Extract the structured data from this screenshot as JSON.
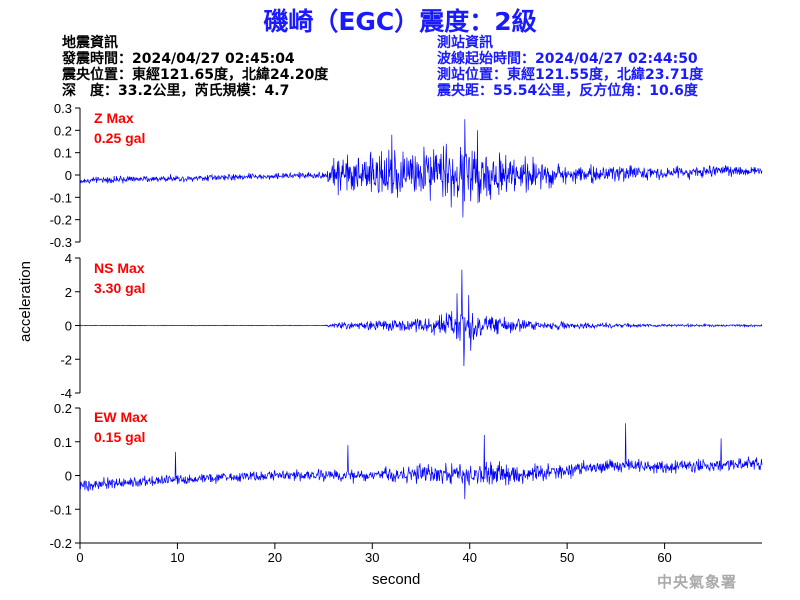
{
  "header": {
    "title": "磯崎（EGC）震度：2級",
    "quake_heading": "地震資訊",
    "quake_time": "發震時間：2024/04/27 02:45:04",
    "quake_location": "震央位置：東經121.65度，北緯24.20度",
    "quake_depth": "深　度：33.2公里，芮氏規模：4.7",
    "station_heading": "測站資訊",
    "wave_start": "波線起始時間：2024/04/27 02:44:50",
    "station_location": "測站位置：東經121.55度，北緯23.71度",
    "station_distance": "震央距：55.54公里，反方位角：10.6度"
  },
  "credit": "中央氣象署",
  "colors": {
    "trace": "#0000ff",
    "max_label": "#ff0000",
    "title": "#1a1aff"
  },
  "chart_data": {
    "type": "line",
    "xlabel": "second",
    "ylabel": "acceleration",
    "xlim": [
      0,
      70
    ],
    "xticks": [
      0,
      10,
      20,
      30,
      40,
      50,
      60
    ],
    "panels": [
      {
        "name": "Z",
        "max_label": "Z Max",
        "max_value": "0.25 gal",
        "ylim": [
          -0.3,
          0.3
        ],
        "yticks": [
          -0.3,
          -0.2,
          -0.1,
          0,
          0.1,
          0.2,
          0.3
        ],
        "ytick_labels": [
          "-0.3",
          "-0.2",
          "-0.1",
          "0",
          "0.1",
          "0.2",
          "0.3"
        ],
        "noise_level": 0.012,
        "baseline": [
          [
            0,
            -0.025
          ],
          [
            10,
            -0.015
          ],
          [
            25,
            0.0
          ],
          [
            45,
            0.0
          ],
          [
            70,
            0.02
          ]
        ],
        "envelope": [
          [
            0,
            0.0
          ],
          [
            25,
            0.0
          ],
          [
            26,
            0.06
          ],
          [
            28,
            0.07
          ],
          [
            33,
            0.08
          ],
          [
            37,
            0.09
          ],
          [
            39,
            0.11
          ],
          [
            41,
            0.09
          ],
          [
            45,
            0.06
          ],
          [
            50,
            0.035
          ],
          [
            58,
            0.02
          ],
          [
            70,
            0.012
          ]
        ],
        "peaks": [
          [
            39.5,
            0.25
          ],
          [
            39.3,
            -0.19
          ],
          [
            32.0,
            0.18
          ],
          [
            40.8,
            0.2
          ],
          [
            37.6,
            0.14
          ]
        ]
      },
      {
        "name": "NS",
        "max_label": "NS Max",
        "max_value": "3.30 gal",
        "ylim": [
          -4,
          4
        ],
        "yticks": [
          -4,
          -2,
          0,
          2,
          4
        ],
        "ytick_labels": [
          "-4",
          "-2",
          "0",
          "2",
          "4"
        ],
        "noise_level": 0.015,
        "baseline": [
          [
            0,
            0
          ],
          [
            70,
            0
          ]
        ],
        "envelope": [
          [
            0,
            0.0
          ],
          [
            25,
            0.0
          ],
          [
            26,
            0.12
          ],
          [
            30,
            0.2
          ],
          [
            35,
            0.3
          ],
          [
            37,
            0.5
          ],
          [
            39,
            0.9
          ],
          [
            40,
            0.8
          ],
          [
            42,
            0.45
          ],
          [
            46,
            0.25
          ],
          [
            52,
            0.12
          ],
          [
            60,
            0.06
          ],
          [
            70,
            0.04
          ]
        ],
        "peaks": [
          [
            39.2,
            3.3
          ],
          [
            39.4,
            -2.4
          ],
          [
            38.7,
            1.9
          ],
          [
            39.9,
            1.8
          ],
          [
            40.1,
            -1.5
          ]
        ]
      },
      {
        "name": "EW",
        "max_label": "EW Max",
        "max_value": "0.15 gal",
        "ylim": [
          -0.2,
          0.2
        ],
        "yticks": [
          -0.2,
          -0.1,
          0,
          0.1,
          0.2
        ],
        "ytick_labels": [
          "-0.2",
          "-0.1",
          "0",
          "0.1",
          "0.2"
        ],
        "noise_level": 0.013,
        "baseline": [
          [
            0,
            -0.03
          ],
          [
            5,
            -0.02
          ],
          [
            10,
            -0.01
          ],
          [
            20,
            0.0
          ],
          [
            25,
            0.0
          ],
          [
            30,
            0.0
          ],
          [
            35,
            0.005
          ],
          [
            40,
            0.0
          ],
          [
            45,
            0.0
          ],
          [
            55,
            0.03
          ],
          [
            60,
            0.025
          ],
          [
            70,
            0.035
          ]
        ],
        "envelope": [
          [
            0,
            0.0
          ],
          [
            25,
            0.0
          ],
          [
            30,
            0.01
          ],
          [
            35,
            0.015
          ],
          [
            39,
            0.025
          ],
          [
            42,
            0.02
          ],
          [
            50,
            0.01
          ],
          [
            70,
            0.005
          ]
        ],
        "peaks": [
          [
            56.0,
            0.155
          ],
          [
            41.5,
            0.12
          ],
          [
            65.8,
            0.11
          ],
          [
            39.5,
            -0.07
          ],
          [
            27.5,
            0.09
          ],
          [
            9.8,
            0.07
          ]
        ]
      }
    ]
  }
}
